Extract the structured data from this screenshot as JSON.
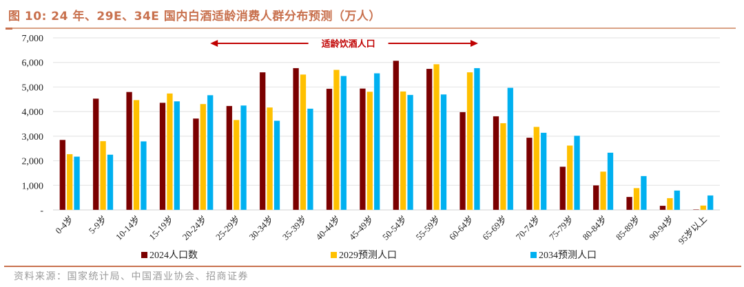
{
  "header": {
    "title": "图 10:  24 年、29E、34E 国内白酒适龄消费人群分布预测（万人）"
  },
  "footer": {
    "source": "资料来源：国家统计局、中国酒业协会、招商证券"
  },
  "colors": {
    "title": "#c8704d",
    "series_2024": "#7b0000",
    "series_2029": "#ffc000",
    "series_2034": "#00b0f0",
    "annotation": "#c00000",
    "grid": "#e6e6e6"
  },
  "chart_data": {
    "type": "bar",
    "title": "24 年、29E、34E 国内白酒适龄消费人群分布预测（万人）",
    "xlabel": "",
    "ylabel": "",
    "ylim": [
      0,
      7000
    ],
    "yticks": [
      0,
      1000,
      2000,
      3000,
      4000,
      5000,
      6000,
      7000
    ],
    "ytick_labels": [
      "-",
      "1,000",
      "2,000",
      "3,000",
      "4,000",
      "5,000",
      "6,000",
      "7,000"
    ],
    "grid": true,
    "legend_position": "bottom",
    "categories": [
      "0-4岁",
      "5-9岁",
      "10-14岁",
      "15-19岁",
      "20-24岁",
      "25-29岁",
      "30-34岁",
      "35-39岁",
      "40-44岁",
      "45-49岁",
      "50-54岁",
      "55-59岁",
      "60-64岁",
      "65-69岁",
      "70-74岁",
      "75-79岁",
      "80-84岁",
      "85-89岁",
      "90-94岁",
      "95岁以上"
    ],
    "series": [
      {
        "name": "2024人口数",
        "values": [
          2850,
          4530,
          4800,
          4360,
          3720,
          4230,
          5600,
          5770,
          4930,
          4940,
          6070,
          5740,
          3980,
          3810,
          2940,
          1760,
          1000,
          530,
          170,
          20
        ]
      },
      {
        "name": "2029预测人口",
        "values": [
          2270,
          2800,
          4470,
          4740,
          4310,
          3660,
          4170,
          5510,
          5700,
          4810,
          4820,
          5930,
          5600,
          3530,
          3380,
          2620,
          1560,
          890,
          480,
          180
        ]
      },
      {
        "name": "2034预测人口",
        "values": [
          2170,
          2250,
          2790,
          4420,
          4670,
          4250,
          3630,
          4120,
          5450,
          5560,
          4680,
          4700,
          5770,
          4970,
          3140,
          3020,
          2330,
          1380,
          790,
          590
        ]
      }
    ],
    "annotations": [
      {
        "text": "适龄饮酒人口",
        "type": "double-arrow",
        "from_category": "25-29岁",
        "to_category": "60-64岁"
      }
    ]
  }
}
